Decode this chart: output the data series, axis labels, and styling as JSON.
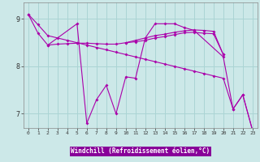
{
  "xlabel": "Windchill (Refroidissement éolien,°C)",
  "bg_color": "#cce8e8",
  "grid_color": "#aad4d4",
  "line_color": "#aa00aa",
  "xlim": [
    -0.5,
    23.5
  ],
  "ylim": [
    6.7,
    9.35
  ],
  "yticks": [
    7,
    8,
    9
  ],
  "xticks": [
    0,
    1,
    2,
    3,
    4,
    5,
    6,
    7,
    8,
    9,
    10,
    11,
    12,
    13,
    14,
    15,
    16,
    17,
    18,
    19,
    20,
    21,
    22,
    23
  ],
  "line_A_x": [
    0,
    1,
    2,
    5,
    6,
    7,
    8,
    9,
    10,
    11,
    12,
    13,
    14,
    15,
    16,
    17,
    20,
    21,
    22,
    23
  ],
  "line_A_y": [
    9.1,
    8.7,
    8.45,
    8.9,
    6.8,
    7.3,
    7.6,
    7.0,
    7.78,
    7.75,
    8.6,
    8.9,
    8.9,
    8.9,
    8.82,
    8.76,
    8.2,
    7.1,
    7.4,
    6.65
  ],
  "line_B_x": [
    2,
    3,
    4,
    5,
    6,
    7,
    8,
    9,
    10,
    11,
    12,
    13,
    14,
    15,
    16,
    17,
    18,
    19,
    20
  ],
  "line_B_y": [
    8.45,
    8.47,
    8.48,
    8.49,
    8.49,
    8.48,
    8.47,
    8.47,
    8.5,
    8.55,
    8.6,
    8.65,
    8.68,
    8.72,
    8.75,
    8.77,
    8.76,
    8.74,
    8.25
  ],
  "line_C_x": [
    10,
    11,
    12,
    13,
    14,
    15,
    16,
    17,
    18,
    19,
    20
  ],
  "line_C_y": [
    8.5,
    8.52,
    8.55,
    8.6,
    8.63,
    8.67,
    8.71,
    8.72,
    8.7,
    8.69,
    8.25
  ],
  "line_D_x": [
    0,
    1,
    2,
    3,
    4,
    5,
    6,
    7,
    8,
    9,
    10,
    11,
    12,
    13,
    14,
    15,
    16,
    17,
    18,
    19,
    20,
    21,
    22,
    23
  ],
  "line_D_y": [
    9.1,
    8.88,
    8.65,
    8.6,
    8.55,
    8.5,
    8.45,
    8.4,
    8.35,
    8.3,
    8.25,
    8.2,
    8.15,
    8.1,
    8.05,
    8.0,
    7.95,
    7.9,
    7.85,
    7.8,
    7.75,
    7.1,
    7.4,
    6.65
  ]
}
